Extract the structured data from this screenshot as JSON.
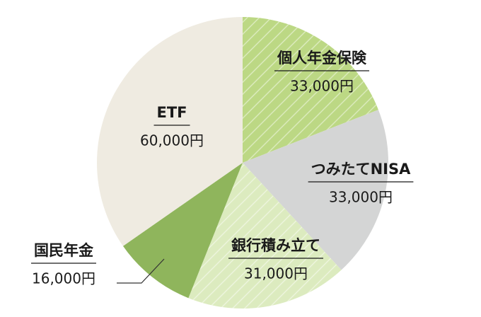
{
  "chart_data": {
    "type": "pie",
    "categories": [
      "個人年金保険",
      "つみたてNISA",
      "銀行積み立て",
      "国民年金",
      "ETF"
    ],
    "values": [
      33000,
      33000,
      31000,
      16000,
      60000
    ],
    "value_labels": [
      "33,000円",
      "33,000円",
      "31,000円",
      "16,000円",
      "60,000円"
    ],
    "colors": [
      "#bcd884",
      "#d4d5d5",
      "#dcebbf",
      "#8fb55c",
      "#efebe1"
    ]
  }
}
